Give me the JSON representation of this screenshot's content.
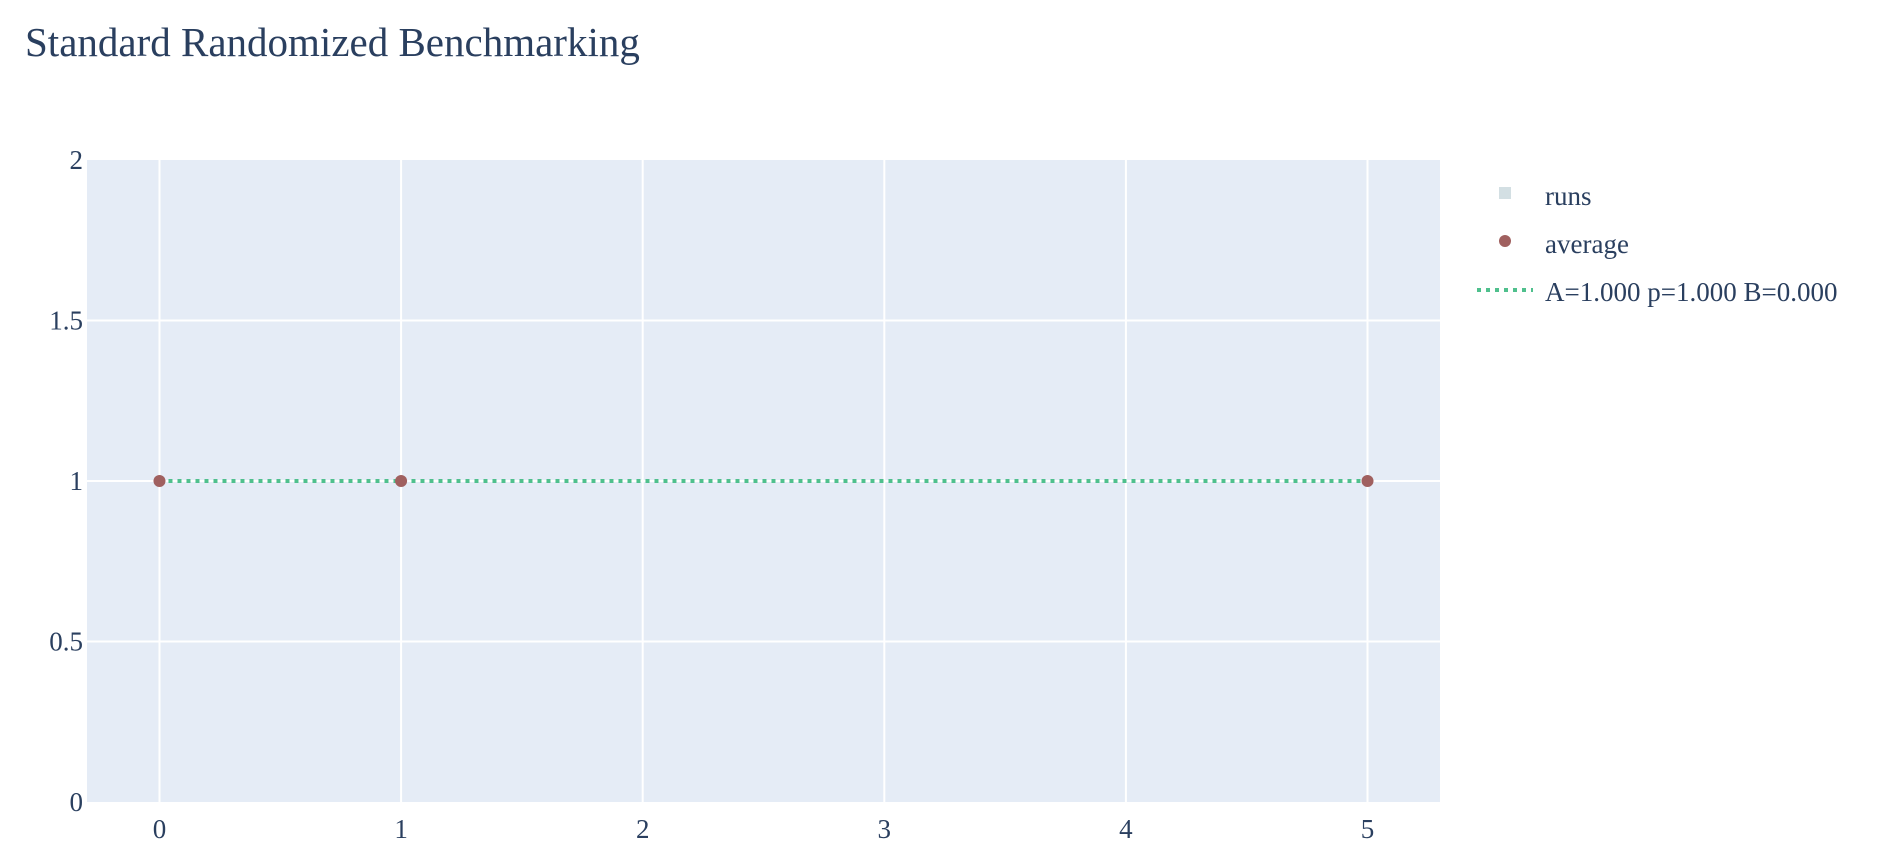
{
  "chart_data": {
    "type": "scatter",
    "title": "Standard Randomized Benchmarking",
    "xlabel": "",
    "ylabel": "",
    "xlim": [
      -0.3,
      5.3
    ],
    "ylim": [
      0,
      2
    ],
    "x_ticks": [
      "0",
      "1",
      "2",
      "3",
      "4",
      "5"
    ],
    "y_ticks": [
      "0",
      "0.5",
      "1",
      "1.5",
      "2"
    ],
    "grid": true,
    "legend_position": "right",
    "colors": {
      "plot_bg": "#e5ecf6",
      "grid": "#ffffff",
      "text": "#2a3f5f",
      "runs": "#d3dfe3",
      "average": "#a0605f",
      "fit": "#4fc08d"
    },
    "series": [
      {
        "name": "runs",
        "kind": "markers",
        "marker": "square",
        "x": [],
        "y": []
      },
      {
        "name": "average",
        "kind": "markers",
        "marker": "circle",
        "x": [
          0,
          1,
          5
        ],
        "y": [
          1,
          1,
          1
        ]
      },
      {
        "name": "A=1.000 p=1.000 B=0.000",
        "kind": "line",
        "dash": "dot",
        "x": [
          0,
          5
        ],
        "y": [
          1,
          1
        ]
      }
    ]
  }
}
